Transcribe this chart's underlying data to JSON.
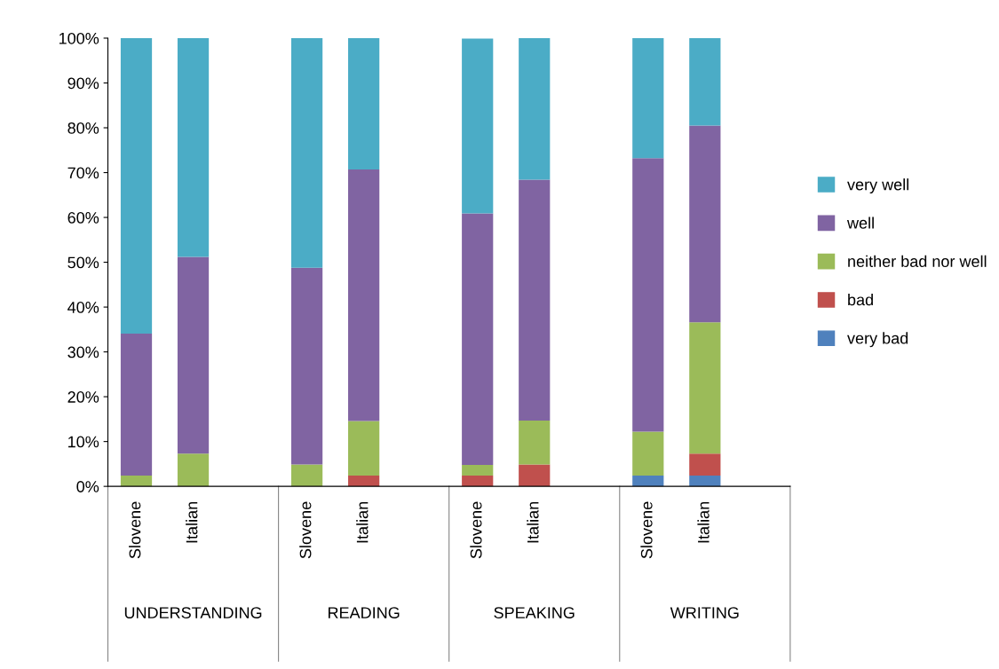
{
  "chart_data": {
    "type": "bar",
    "stacked": true,
    "categories": [
      "Slovene",
      "Italian",
      null,
      "Slovene",
      "Italian",
      null,
      "Slovene",
      "Italian",
      null,
      "Slovene",
      "Italian",
      null
    ],
    "series": [
      {
        "name": "very bad",
        "color": "#4f81bd",
        "values": [
          0,
          0,
          null,
          0,
          0,
          null,
          0,
          0,
          null,
          2.4,
          2.4,
          null
        ]
      },
      {
        "name": "bad",
        "color": "#c0504d",
        "values": [
          0,
          0,
          null,
          0,
          2.4,
          null,
          2.4,
          4.9,
          null,
          0,
          4.9,
          null
        ]
      },
      {
        "name": "neither bad nor well",
        "color": "#9bbb59",
        "values": [
          2.4,
          7.3,
          null,
          4.9,
          12.2,
          null,
          2.4,
          9.8,
          null,
          9.8,
          29.3,
          null
        ]
      },
      {
        "name": "well",
        "color": "#8064a2",
        "values": [
          31.7,
          43.9,
          null,
          43.9,
          56.1,
          null,
          56.1,
          53.7,
          null,
          61.0,
          43.9,
          null
        ]
      },
      {
        "name": "very well",
        "color": "#4bacc6",
        "values": [
          65.9,
          48.8,
          null,
          51.2,
          29.3,
          null,
          39.0,
          31.7,
          null,
          26.8,
          19.5,
          null
        ]
      }
    ],
    "ylim": [
      0,
      100
    ],
    "yticks": [
      {
        "value": 0,
        "label": "0%"
      },
      {
        "value": 10,
        "label": "10%"
      },
      {
        "value": 20,
        "label": "20%"
      },
      {
        "value": 30,
        "label": "30%"
      },
      {
        "value": 40,
        "label": "40%"
      },
      {
        "value": 50,
        "label": "50%"
      },
      {
        "value": 60,
        "label": "60%"
      },
      {
        "value": 70,
        "label": "70%"
      },
      {
        "value": 80,
        "label": "80%"
      },
      {
        "value": 90,
        "label": "90%"
      },
      {
        "value": 100,
        "label": "100%"
      }
    ],
    "annotations": [
      "UNDERSTANDING",
      "READING",
      "SPEAKING",
      "WRITING"
    ],
    "grid": false,
    "legend": "right"
  }
}
